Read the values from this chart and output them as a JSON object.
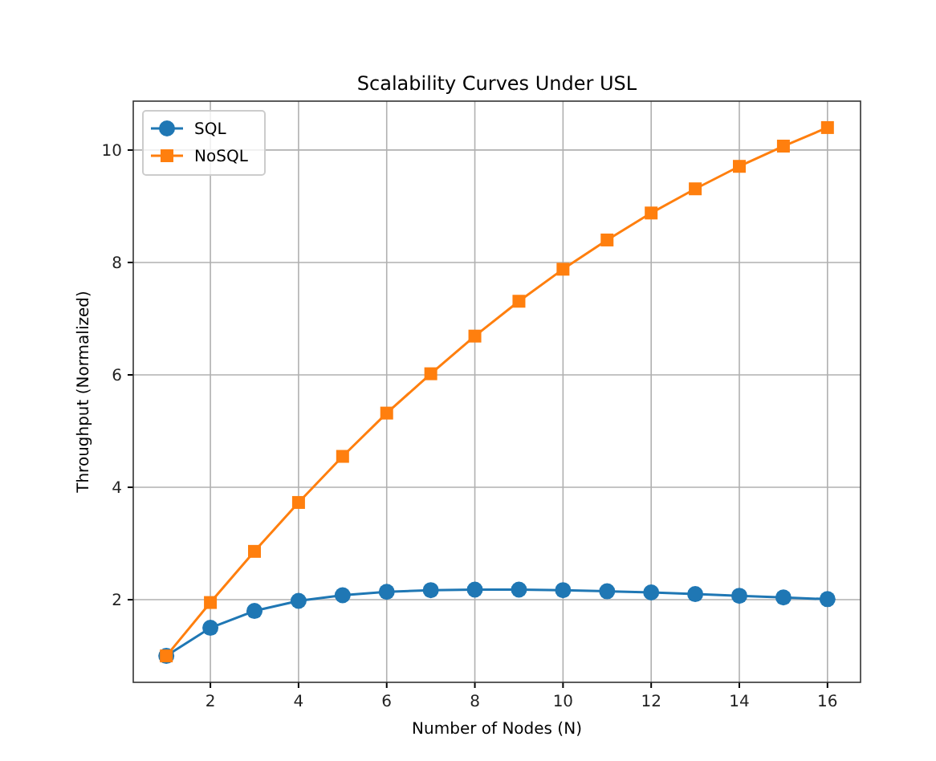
{
  "chart_data": {
    "type": "line",
    "title": "Scalability Curves Under USL",
    "xlabel": "Number of Nodes (N)",
    "ylabel": "Throughput (Normalized)",
    "x": [
      1,
      2,
      3,
      4,
      5,
      6,
      7,
      8,
      9,
      10,
      11,
      12,
      13,
      14,
      15,
      16
    ],
    "series": [
      {
        "name": "SQL",
        "color": "#1f77b4",
        "marker": "circle",
        "values": [
          1,
          1.5,
          1.8,
          1.98,
          2.08,
          2.14,
          2.17,
          2.18,
          2.18,
          2.17,
          2.15,
          2.13,
          2.1,
          2.07,
          2.04,
          2.01
        ]
      },
      {
        "name": "NoSQL",
        "color": "#ff7f0e",
        "marker": "square",
        "values": [
          1,
          1.95,
          2.86,
          3.73,
          4.55,
          5.32,
          6.02,
          6.69,
          7.31,
          7.88,
          8.4,
          8.88,
          9.31,
          9.71,
          10.07,
          10.4
        ]
      }
    ],
    "xlim": [
      0.25,
      16.75
    ],
    "ylim": [
      0.53,
      10.87
    ],
    "xticks": [
      2,
      4,
      6,
      8,
      10,
      12,
      14,
      16
    ],
    "yticks": [
      2,
      4,
      6,
      8,
      10
    ],
    "grid": true,
    "legend": "top left",
    "line_style": "solid"
  }
}
